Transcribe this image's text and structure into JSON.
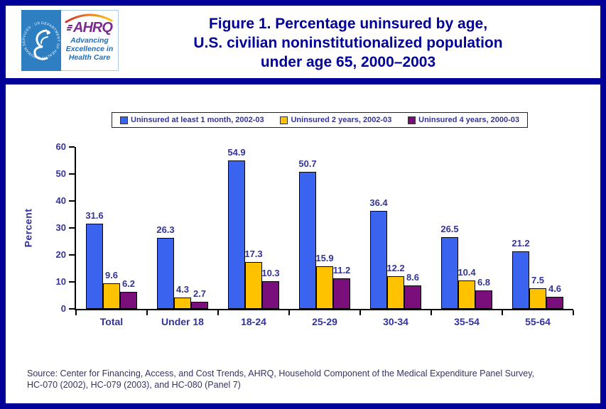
{
  "header": {
    "logo": {
      "seal_text": "DEPARTMENT OF HEALTH & HUMAN SERVICES · USA",
      "wordmark": "AHRQ",
      "tagline_lines": [
        "Advancing",
        "Excellence in",
        "Health Care"
      ]
    },
    "title_lines": [
      "Figure 1. Percentage uninsured by age,",
      "U.S. civilian noninstitutionalized population",
      "under age 65, 2000–2003"
    ]
  },
  "chart_data": {
    "type": "bar",
    "categories": [
      "Total",
      "Under 18",
      "18-24",
      "25-29",
      "30-34",
      "35-54",
      "55-64"
    ],
    "series": [
      {
        "name": "Uninsured at least 1 month, 2002-03",
        "color": "#3A64F0",
        "values": [
          31.6,
          26.3,
          54.9,
          50.7,
          36.4,
          26.5,
          21.2
        ]
      },
      {
        "name": "Uninsured 2 years, 2002-03",
        "color": "#FFC200",
        "values": [
          9.6,
          4.3,
          17.3,
          15.9,
          12.2,
          10.4,
          7.5
        ]
      },
      {
        "name": "Uninsured 4 years, 2000-03",
        "color": "#7A0E7A",
        "values": [
          6.2,
          2.7,
          10.3,
          11.2,
          8.6,
          6.8,
          4.6
        ]
      }
    ],
    "title": "Figure 1. Percentage uninsured by age, U.S. civilian noninstitutionalized population under age 65, 2000–2003",
    "xlabel": "",
    "ylabel": "Percent",
    "ylim": [
      0,
      60
    ],
    "yticks": [
      0,
      10,
      20,
      30,
      40,
      50,
      60
    ],
    "legend_position": "top",
    "grid": false,
    "value_labels": true
  },
  "source": {
    "lines": [
      "Source: Center for Financing, Access, and Cost Trends, AHRQ, Household Component of the Medical Expenditure Panel Survey,",
      "HC-070 (2002), HC-079 (2003), and HC-080 (Panel 7)"
    ]
  },
  "colors": {
    "frame_navy": "#000099",
    "title_text": "#000099",
    "axis_text": "#333399",
    "source_text": "#333366",
    "seal_blue": "#2E7FC2",
    "ahrq_purple": "#7C2B8E",
    "tagline_blue": "#1B6FC0",
    "arc_orange": "#E8821E"
  }
}
